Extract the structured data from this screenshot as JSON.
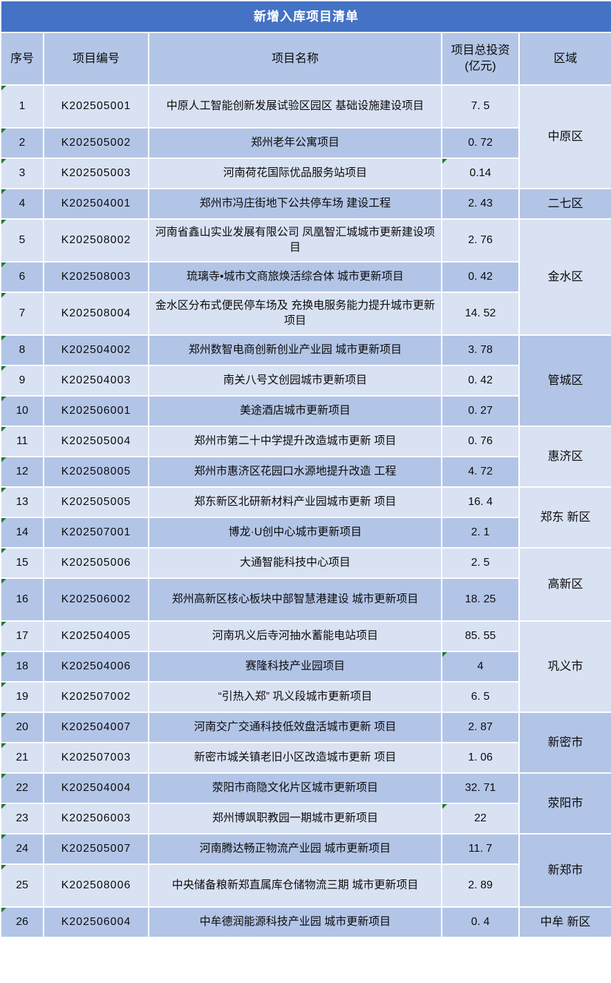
{
  "title": "新增入库项目清单",
  "columns": {
    "no": "序号",
    "code": "项目编号",
    "name": "项目名称",
    "investment": "项目总投资\n(亿元)",
    "region": "区域"
  },
  "rows": [
    {
      "no": "1",
      "code": "K202505001",
      "name": "中原人工智能创新发展试验区园区 基础设施建设项目",
      "inv": "7. 5",
      "tall": true
    },
    {
      "no": "2",
      "code": "K202505002",
      "name": "郑州老年公寓项目",
      "inv": "0. 72"
    },
    {
      "no": "3",
      "code": "K202505003",
      "name": "河南荷花国际优品服务站项目",
      "inv": "0.14",
      "inv_flag": true
    },
    {
      "no": "4",
      "code": "K202504001",
      "name": "郑州市冯庄街地下公共停车场 建设工程",
      "inv": "2. 43"
    },
    {
      "no": "5",
      "code": "K202508002",
      "name": "河南省鑫山实业发展有限公司 凤凰智汇城城市更新建设项目",
      "inv": "2. 76",
      "tall": true
    },
    {
      "no": "6",
      "code": "K202508003",
      "name": "琉璃寺•城市文商旅焕活综合体 城市更新项目",
      "inv": "0. 42"
    },
    {
      "no": "7",
      "code": "K202508004",
      "name": "金水区分布式便民停车场及 充换电服务能力提升城市更新项目",
      "inv": "14. 52",
      "tall": true
    },
    {
      "no": "8",
      "code": "K202504002",
      "name": "郑州数智电商创新创业产业园 城市更新项目",
      "inv": "3. 78"
    },
    {
      "no": "9",
      "code": "K202504003",
      "name": "南关八号文创园城市更新项目",
      "inv": "0. 42"
    },
    {
      "no": "10",
      "code": "K202506001",
      "name": "美途酒店城市更新项目",
      "inv": "0. 27"
    },
    {
      "no": "11",
      "code": "K202505004",
      "name": "郑州市第二十中学提升改造城市更新 项目",
      "inv": "0. 76"
    },
    {
      "no": "12",
      "code": "K202508005",
      "name": "郑州市惠济区花园口水源地提升改造 工程",
      "inv": "4. 72"
    },
    {
      "no": "13",
      "code": "K202505005",
      "name": "郑东新区北研新材料产业园城市更新 项目",
      "inv": "16. 4"
    },
    {
      "no": "14",
      "code": "K202507001",
      "name": "博龙·U创中心城市更新项目",
      "inv": "2. 1"
    },
    {
      "no": "15",
      "code": "K202505006",
      "name": "大通智能科技中心项目",
      "inv": "2. 5"
    },
    {
      "no": "16",
      "code": "K202506002",
      "name": "郑州高新区核心板块中部智慧港建设 城市更新项目",
      "inv": "18. 25",
      "tall": true
    },
    {
      "no": "17",
      "code": "K202504005",
      "name": "河南巩义后寺河抽水蓄能电站项目",
      "inv": "85. 55"
    },
    {
      "no": "18",
      "code": "K202504006",
      "name": "赛隆科技产业园项目",
      "inv": "4",
      "inv_flag": true
    },
    {
      "no": "19",
      "code": "K202507002",
      "name": "“引热入郑” 巩义段城市更新项目",
      "inv": "6. 5"
    },
    {
      "no": "20",
      "code": "K202504007",
      "name": "河南交广交通科技低效盘活城市更新 项目",
      "inv": "2. 87"
    },
    {
      "no": "21",
      "code": "K202507003",
      "name": "新密市城关镇老旧小区改造城市更新 项目",
      "inv": "1. 06"
    },
    {
      "no": "22",
      "code": "K202504004",
      "name": "荥阳市商隐文化片区城市更新项目",
      "inv": "32. 71"
    },
    {
      "no": "23",
      "code": "K202506003",
      "name": "郑州博飒职教园一期城市更新项目",
      "inv": "22",
      "inv_flag": true
    },
    {
      "no": "24",
      "code": "K202505007",
      "name": "河南腾达畅正物流产业园 城市更新项目",
      "inv": "11. 7"
    },
    {
      "no": "25",
      "code": "K202508006",
      "name": "中央储备粮新郑直属库仓储物流三期 城市更新项目",
      "inv": "2. 89",
      "tall": true
    },
    {
      "no": "26",
      "code": "K202506004",
      "name": "中牟德润能源科技产业园 城市更新项目",
      "inv": "0. 4"
    }
  ],
  "regions": [
    {
      "label": "中原区",
      "span": 3,
      "shade": "light"
    },
    {
      "label": "二七区",
      "span": 1,
      "shade": "medium"
    },
    {
      "label": "金水区",
      "span": 3,
      "shade": "light"
    },
    {
      "label": "管城区",
      "span": 3,
      "shade": "medium"
    },
    {
      "label": "惠济区",
      "span": 2,
      "shade": "light"
    },
    {
      "label": "郑东 新区",
      "span": 2,
      "shade": "light"
    },
    {
      "label": "高新区",
      "span": 2,
      "shade": "light"
    },
    {
      "label": "巩义市",
      "span": 3,
      "shade": "light"
    },
    {
      "label": "新密市",
      "span": 2,
      "shade": "medium"
    },
    {
      "label": "荥阳市",
      "span": 2,
      "shade": "medium"
    },
    {
      "label": "新郑市",
      "span": 2,
      "shade": "medium"
    },
    {
      "label": "中牟 新区",
      "span": 1,
      "shade": "medium"
    }
  ],
  "colors": {
    "title_bg": "#4472C4",
    "title_text": "#FFFFFF",
    "header_bg": "#B4C6E7",
    "row_light": "#D9E2F3",
    "row_medium": "#B3C5E7",
    "grid": "#FFFFFF",
    "body_text": "#0B0B0B",
    "triangle": "#1E7B34"
  }
}
